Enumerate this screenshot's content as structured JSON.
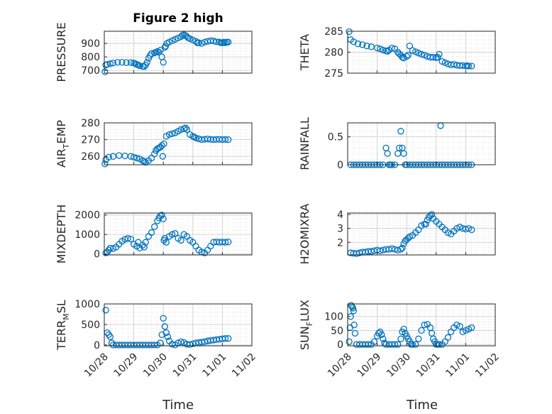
{
  "figure": {
    "title": "Figure 2 high",
    "xlabel": "Time"
  },
  "colors": {
    "marker": "#0072BD",
    "axis": "#262626",
    "grid": "#d9d9d9"
  },
  "chart_data": [
    {
      "id": "pressure",
      "type": "scatter",
      "ylabel": "PRESSURE",
      "ylim": [
        680,
        990
      ],
      "yticks": [
        700,
        800,
        900
      ],
      "xlim": [
        0,
        5
      ],
      "grid": true,
      "x": [
        0.02,
        0.05,
        0.1,
        0.2,
        0.3,
        0.45,
        0.6,
        0.75,
        0.9,
        1.0,
        1.05,
        1.1,
        1.15,
        1.2,
        1.3,
        1.35,
        1.4,
        1.45,
        1.5,
        1.55,
        1.6,
        1.7,
        1.75,
        1.8,
        1.85,
        1.9,
        1.95,
        2.0,
        2.05,
        2.08,
        2.12,
        2.2,
        2.3,
        2.4,
        2.5,
        2.6,
        2.65,
        2.7,
        2.75,
        2.8,
        2.85,
        2.9,
        3.0,
        3.1,
        3.15,
        3.2,
        3.3,
        3.4,
        3.5,
        3.6,
        3.7,
        3.8,
        3.9,
        3.95,
        4.0,
        4.05,
        4.1,
        4.15,
        4.2
      ],
      "values": [
        690,
        740,
        745,
        750,
        755,
        760,
        760,
        758,
        758,
        755,
        750,
        745,
        740,
        735,
        730,
        728,
        740,
        760,
        790,
        810,
        825,
        830,
        835,
        840,
        835,
        850,
        800,
        760,
        870,
        880,
        900,
        910,
        920,
        930,
        940,
        950,
        960,
        965,
        958,
        950,
        940,
        935,
        925,
        915,
        905,
        905,
        900,
        910,
        915,
        920,
        918,
        912,
        910,
        905,
        905,
        910,
        905,
        910,
        910
      ]
    },
    {
      "id": "theta",
      "type": "scatter",
      "ylabel": "THETA",
      "ylim": [
        275,
        285
      ],
      "yticks": [
        275,
        280,
        285
      ],
      "xlim": [
        0,
        5
      ],
      "grid": true,
      "x": [
        0.05,
        0.1,
        0.2,
        0.35,
        0.5,
        0.65,
        0.8,
        1.0,
        1.1,
        1.2,
        1.3,
        1.35,
        1.4,
        1.5,
        1.6,
        1.7,
        1.75,
        1.8,
        1.85,
        1.9,
        2.0,
        2.05,
        2.1,
        2.2,
        2.3,
        2.4,
        2.5,
        2.6,
        2.7,
        2.8,
        2.9,
        3.0,
        3.05,
        3.1,
        3.2,
        3.3,
        3.4,
        3.5,
        3.6,
        3.7,
        3.8,
        3.9,
        4.0,
        4.05,
        4.1,
        4.2
      ],
      "values": [
        284.9,
        283,
        282.5,
        282,
        281.8,
        281.5,
        281.3,
        281,
        280.8,
        280.5,
        280.3,
        280.2,
        280.5,
        281,
        280.8,
        280,
        279.6,
        279.3,
        278.8,
        278.6,
        279,
        279.3,
        281.5,
        280.4,
        280.1,
        279.8,
        279.5,
        279.3,
        279.0,
        278.8,
        278.8,
        278.7,
        278.8,
        279.5,
        277.8,
        277.5,
        277.2,
        277.0,
        277.1,
        276.9,
        276.8,
        276.8,
        276.7,
        276.8,
        276.7,
        276.7
      ]
    },
    {
      "id": "air_temp",
      "type": "scatter",
      "ylabel": "AIR_TEMP",
      "ylim": [
        255,
        280
      ],
      "yticks": [
        260,
        270,
        280
      ],
      "xlim": [
        0,
        5
      ],
      "grid": true,
      "x": [
        0.02,
        0.05,
        0.15,
        0.3,
        0.5,
        0.7,
        0.9,
        1.0,
        1.1,
        1.2,
        1.3,
        1.35,
        1.4,
        1.5,
        1.6,
        1.7,
        1.75,
        1.8,
        1.85,
        1.9,
        1.95,
        1.98,
        2.02,
        2.1,
        2.2,
        2.3,
        2.4,
        2.5,
        2.6,
        2.7,
        2.75,
        2.8,
        2.9,
        3.0,
        3.05,
        3.1,
        3.2,
        3.3,
        3.4,
        3.5,
        3.6,
        3.7,
        3.8,
        3.9,
        4.0,
        4.1,
        4.2
      ],
      "values": [
        255.5,
        258,
        259.5,
        260,
        260.5,
        260.3,
        260,
        259.5,
        259,
        258.5,
        257.5,
        257,
        256.5,
        257.5,
        259,
        261.5,
        263.5,
        264.5,
        265,
        265.5,
        266.5,
        260,
        267.5,
        272,
        273,
        273.5,
        274,
        275,
        276,
        276.5,
        277,
        276,
        273,
        272,
        271.5,
        271,
        270.5,
        270,
        270.2,
        270.4,
        270.1,
        270,
        270.1,
        270.2,
        270,
        270.1,
        270
      ]
    },
    {
      "id": "rainfall",
      "type": "scatter",
      "ylabel": "RAINFALL",
      "ylim": [
        0,
        0.75
      ],
      "yticks": [
        0,
        0.5
      ],
      "xlim": [
        0,
        5
      ],
      "grid": true,
      "x": [
        0.1,
        0.2,
        0.3,
        0.4,
        0.5,
        0.6,
        0.7,
        0.8,
        0.9,
        1.0,
        1.1,
        1.2,
        1.3,
        1.35,
        1.4,
        1.45,
        1.5,
        1.6,
        1.7,
        1.75,
        1.8,
        1.85,
        1.9,
        1.95,
        2.0,
        2.1,
        2.2,
        2.3,
        2.4,
        2.5,
        2.6,
        2.7,
        2.8,
        2.9,
        3.0,
        3.1,
        3.15,
        3.2,
        3.3,
        3.4,
        3.5,
        3.6,
        3.7,
        3.8,
        3.9,
        4.0,
        4.1,
        4.2
      ],
      "values": [
        0,
        0,
        0,
        0,
        0,
        0,
        0,
        0,
        0,
        0,
        0,
        0,
        0.3,
        0.2,
        0,
        0,
        0,
        0,
        0.2,
        0.3,
        0.6,
        0.3,
        0.2,
        0,
        0,
        0,
        0,
        0,
        0,
        0,
        0,
        0,
        0,
        0,
        0,
        0,
        0.7,
        0,
        0,
        0,
        0,
        0,
        0,
        0,
        0,
        0,
        0,
        0
      ]
    },
    {
      "id": "mixdepth",
      "type": "scatter",
      "ylabel": "MIXDEPTH",
      "ylim": [
        -50,
        2100
      ],
      "yticks": [
        0,
        1000,
        2000
      ],
      "xlim": [
        0,
        5
      ],
      "grid": true,
      "x": [
        0.05,
        0.1,
        0.15,
        0.2,
        0.3,
        0.4,
        0.5,
        0.6,
        0.7,
        0.8,
        0.9,
        1.0,
        1.1,
        1.15,
        1.2,
        1.3,
        1.35,
        1.4,
        1.5,
        1.6,
        1.7,
        1.8,
        1.85,
        1.9,
        1.95,
        2.0,
        2.02,
        2.05,
        2.1,
        2.2,
        2.3,
        2.4,
        2.5,
        2.6,
        2.7,
        2.8,
        2.9,
        3.0,
        3.1,
        3.2,
        3.3,
        3.4,
        3.5,
        3.6,
        3.7,
        3.8,
        3.9,
        4.0,
        4.1,
        4.2
      ],
      "values": [
        50,
        100,
        200,
        300,
        280,
        350,
        500,
        650,
        750,
        800,
        760,
        500,
        400,
        600,
        300,
        450,
        350,
        600,
        900,
        1100,
        1400,
        1700,
        1850,
        1950,
        2000,
        1800,
        700,
        800,
        600,
        900,
        1000,
        1050,
        800,
        700,
        1000,
        900,
        700,
        600,
        400,
        200,
        100,
        50,
        200,
        400,
        600,
        620,
        600,
        610,
        600,
        620
      ]
    },
    {
      "id": "h2omixra",
      "type": "scatter",
      "ylabel": "H2OMIXRA",
      "ylim": [
        1.1,
        4.1
      ],
      "yticks": [
        2,
        3,
        4
      ],
      "xlim": [
        0,
        5
      ],
      "grid": true,
      "x": [
        0.1,
        0.2,
        0.3,
        0.4,
        0.5,
        0.6,
        0.7,
        0.8,
        0.9,
        1.0,
        1.1,
        1.2,
        1.3,
        1.4,
        1.5,
        1.6,
        1.7,
        1.8,
        1.85,
        1.9,
        1.95,
        2.0,
        2.05,
        2.1,
        2.2,
        2.3,
        2.4,
        2.5,
        2.6,
        2.65,
        2.7,
        2.75,
        2.8,
        2.85,
        2.9,
        3.0,
        3.1,
        3.2,
        3.3,
        3.4,
        3.5,
        3.6,
        3.7,
        3.8,
        3.9,
        4.0,
        4.1,
        4.2
      ],
      "values": [
        1.25,
        1.22,
        1.2,
        1.25,
        1.3,
        1.3,
        1.35,
        1.35,
        1.4,
        1.45,
        1.4,
        1.45,
        1.5,
        1.5,
        1.55,
        1.5,
        1.45,
        1.5,
        1.6,
        1.9,
        2.1,
        2.2,
        2.3,
        2.4,
        2.5,
        2.7,
        2.9,
        3.2,
        3.3,
        3.3,
        3.6,
        3.8,
        3.9,
        4.0,
        3.7,
        3.5,
        3.3,
        3.1,
        2.9,
        2.7,
        2.6,
        2.8,
        3.0,
        3.1,
        3.0,
        2.95,
        3.0,
        2.9
      ]
    },
    {
      "id": "terrmsl",
      "type": "scatter",
      "ylabel": "TERR_MSL",
      "ylim": [
        -20,
        1000
      ],
      "yticks": [
        0,
        500,
        1000
      ],
      "xlim": [
        0,
        5
      ],
      "grid": true,
      "x": [
        0.05,
        0.1,
        0.15,
        0.2,
        0.25,
        0.3,
        0.4,
        0.5,
        0.6,
        0.7,
        0.8,
        0.9,
        1.0,
        1.1,
        1.2,
        1.3,
        1.4,
        1.5,
        1.6,
        1.7,
        1.8,
        1.9,
        1.95,
        2.0,
        2.05,
        2.1,
        2.15,
        2.2,
        2.3,
        2.4,
        2.5,
        2.6,
        2.7,
        2.8,
        2.9,
        3.0,
        3.1,
        3.2,
        3.3,
        3.4,
        3.5,
        3.6,
        3.7,
        3.8,
        3.9,
        4.0,
        4.1,
        4.2
      ],
      "values": [
        850,
        300,
        250,
        200,
        50,
        0,
        0,
        0,
        0,
        0,
        0,
        0,
        0,
        0,
        0,
        0,
        0,
        0,
        0,
        0,
        0,
        50,
        250,
        650,
        450,
        300,
        200,
        100,
        20,
        0,
        50,
        80,
        60,
        20,
        10,
        30,
        50,
        60,
        70,
        80,
        100,
        110,
        120,
        130,
        140,
        150,
        160,
        160
      ]
    },
    {
      "id": "sunflux",
      "type": "scatter",
      "ylabel": "SUN_FLUX",
      "ylim": [
        -5,
        145
      ],
      "yticks": [
        0,
        50,
        100
      ],
      "xlim": [
        0,
        5
      ],
      "grid": true,
      "x": [
        0.05,
        0.08,
        0.1,
        0.12,
        0.15,
        0.18,
        0.2,
        0.22,
        0.25,
        0.3,
        0.4,
        0.5,
        0.6,
        0.7,
        0.8,
        0.9,
        1.0,
        1.05,
        1.1,
        1.15,
        1.2,
        1.25,
        1.3,
        1.4,
        1.5,
        1.6,
        1.7,
        1.8,
        1.85,
        1.9,
        1.95,
        2.0,
        2.05,
        2.1,
        2.15,
        2.2,
        2.3,
        2.4,
        2.5,
        2.6,
        2.7,
        2.8,
        2.85,
        2.9,
        2.95,
        3.0,
        3.05,
        3.1,
        3.2,
        3.3,
        3.4,
        3.5,
        3.6,
        3.7,
        3.8,
        3.9,
        4.0,
        4.1,
        4.2
      ],
      "values": [
        10,
        60,
        100,
        140,
        135,
        130,
        120,
        70,
        40,
        0,
        0,
        0,
        0,
        0,
        0,
        10,
        30,
        40,
        45,
        35,
        20,
        5,
        0,
        0,
        0,
        0,
        0,
        20,
        45,
        55,
        40,
        30,
        20,
        10,
        0,
        0,
        0,
        20,
        50,
        70,
        72,
        60,
        40,
        20,
        10,
        0,
        0,
        0,
        0,
        10,
        25,
        45,
        60,
        70,
        65,
        45,
        50,
        55,
        60
      ]
    }
  ],
  "xaxis": {
    "tick_labels": [
      "10/28",
      "10/29",
      "10/30",
      "10/31",
      "11/01",
      "11/02"
    ]
  }
}
